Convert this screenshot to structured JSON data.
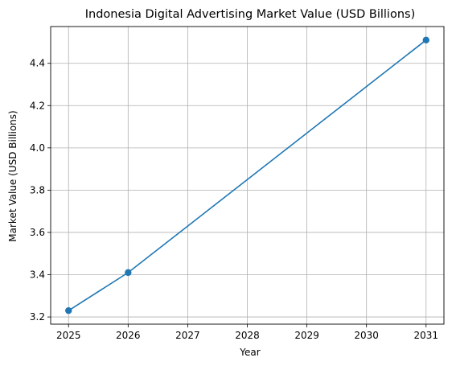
{
  "chart_data": {
    "type": "line",
    "title": "Indonesia Digital Advertising Market Value (USD Billions)",
    "xlabel": "Year",
    "ylabel": "Market Value (USD Billions)",
    "x_ticks": [
      "2025",
      "2026",
      "2027",
      "2028",
      "2029",
      "2030",
      "2031"
    ],
    "y_ticks": [
      "3.2",
      "3.4",
      "3.6",
      "3.8",
      "4.0",
      "4.2",
      "4.4"
    ],
    "xlim": [
      2024.7,
      2031.3
    ],
    "ylim": [
      3.166,
      4.574
    ],
    "grid": true,
    "series": [
      {
        "color": "#1f77b4",
        "marker": "circle",
        "points": [
          {
            "x": 2025,
            "y": 3.23
          },
          {
            "x": 2026,
            "y": 3.41
          },
          {
            "x": 2031,
            "y": 4.51
          }
        ]
      }
    ]
  }
}
